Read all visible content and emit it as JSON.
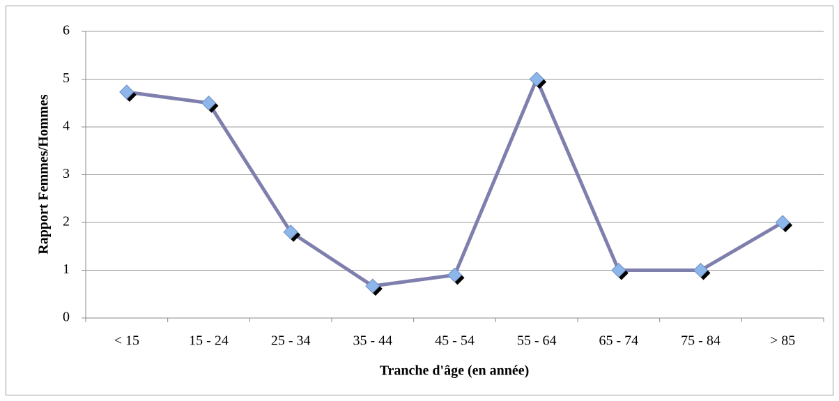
{
  "chart_data": {
    "type": "line",
    "x_label": "Tranche d'âge (en année)",
    "y_label": "Rapport Femmes/Hommes",
    "categories": [
      "< 15",
      "15 - 24",
      "25 - 34",
      "35 - 44",
      "45 - 54",
      "55 - 64",
      "65 - 74",
      "75 - 84",
      "> 85"
    ],
    "series": [
      {
        "name": "Rapport Femmes/Hommes",
        "color": "#7f7fae",
        "values": [
          4.73,
          4.5,
          1.8,
          0.67,
          0.9,
          5.0,
          1.0,
          1.0,
          2.0
        ]
      }
    ],
    "ylim": [
      0,
      6
    ],
    "yticks": [
      0,
      1,
      2,
      3,
      4,
      5,
      6
    ],
    "grid": true,
    "marker_color": "#8db6ea"
  }
}
